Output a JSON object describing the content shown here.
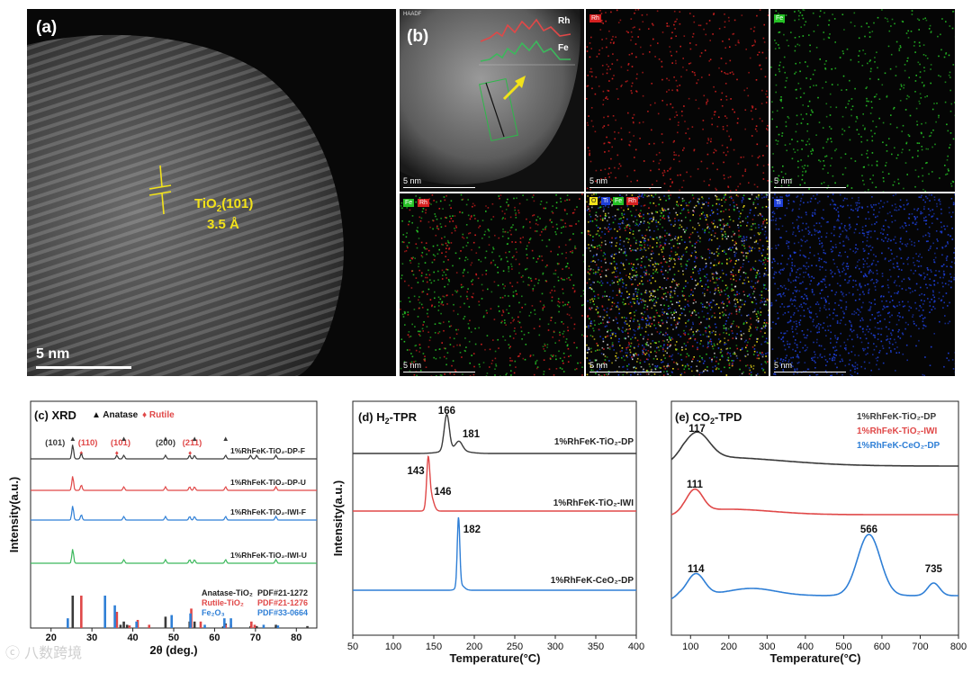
{
  "tem": {
    "panel_a": {
      "label": "(a)",
      "lattice_label": "TiO",
      "lattice_sub": "2",
      "lattice_plane": "(101)",
      "spacing": "3.5 Å",
      "scale": "5 nm"
    },
    "panel_b": {
      "label": "(b)",
      "haadf_tag": "HAADF",
      "profile_rh": "Rh",
      "profile_fe": "Fe",
      "scale": "5 nm"
    },
    "maps": [
      {
        "tags": [
          "Rh"
        ],
        "scale": "5 nm"
      },
      {
        "tags": [
          "Fe"
        ],
        "scale": "5 nm"
      },
      {
        "tags": [
          "Fe",
          "Rh"
        ],
        "scale": "5 nm"
      },
      {
        "tags": [
          "O",
          "Ti",
          "Fe",
          "Rh"
        ],
        "scale": "5 nm"
      },
      {
        "tags": [
          "Ti"
        ],
        "scale": "5 nm"
      }
    ]
  },
  "colors": {
    "black": "#3a3a3a",
    "red": "#e04848",
    "blue": "#2f7fd6",
    "green": "#3cb85c",
    "rh_map": "#d62020",
    "fe_map": "#26c226",
    "ti_map": "#1e3fd8",
    "yellow": "#f2e21a"
  },
  "chart_data": [
    {
      "id": "c",
      "type": "line",
      "panel_label": "(c) XRD",
      "legend_symbols": [
        "▲ Anatase",
        "♦ Rutile"
      ],
      "xlabel": "2θ (deg.)",
      "ylabel": "Intensity(a.u.)",
      "xlim": [
        15,
        85
      ],
      "x_ticks": [
        20,
        30,
        40,
        50,
        60,
        70,
        80
      ],
      "peak_labels": [
        {
          "text": "(101)",
          "x": 21,
          "color": "black"
        },
        {
          "text": "(110)",
          "x": 29,
          "color": "red"
        },
        {
          "text": "(101)",
          "x": 37,
          "color": "red"
        },
        {
          "text": "(200)",
          "x": 48,
          "color": "black"
        },
        {
          "text": "(211)",
          "x": 54.5,
          "color": "red"
        }
      ],
      "series": [
        {
          "name": "1%RhFeK-TiO₂-DP-F",
          "color": "black",
          "peaks": [
            25.3,
            27.4,
            36.1,
            37.8,
            48.0,
            53.9,
            55.1,
            62.7,
            68.8,
            70.3,
            75.0
          ]
        },
        {
          "name": "1%RhFeK-TiO₂-DP-U",
          "color": "red",
          "peaks": [
            25.3,
            27.4,
            37.8,
            48.0,
            53.9,
            55.1,
            62.7,
            75.0
          ]
        },
        {
          "name": "1%RhFeK-TiO₂-IWI-F",
          "color": "blue",
          "peaks": [
            25.3,
            27.4,
            37.8,
            48.0,
            53.9,
            55.1,
            62.7,
            75.0
          ]
        },
        {
          "name": "1%RhFeK-TiO₂-IWI-U",
          "color": "green",
          "peaks": [
            25.3,
            37.8,
            48.0,
            53.9,
            55.1,
            62.7,
            75.0
          ]
        }
      ],
      "references": [
        {
          "name": "Anatase-TiO₂",
          "pdf": "PDF#21-1272",
          "color": "#3a3a3a",
          "lines": [
            [
              25.3,
              1.0
            ],
            [
              37.0,
              0.1
            ],
            [
              37.8,
              0.2
            ],
            [
              38.6,
              0.1
            ],
            [
              48.0,
              0.35
            ],
            [
              53.9,
              0.2
            ],
            [
              55.1,
              0.2
            ],
            [
              62.1,
              0.05
            ],
            [
              62.7,
              0.14
            ],
            [
              68.8,
              0.06
            ],
            [
              70.3,
              0.06
            ],
            [
              75.0,
              0.1
            ],
            [
              82.7,
              0.06
            ]
          ]
        },
        {
          "name": "Rutile-TiO₂",
          "pdf": "PDF#21-1276",
          "color": "#e04848",
          "lines": [
            [
              27.4,
              1.0
            ],
            [
              36.1,
              0.5
            ],
            [
              39.2,
              0.08
            ],
            [
              41.2,
              0.25
            ],
            [
              44.0,
              0.1
            ],
            [
              54.3,
              0.6
            ],
            [
              56.6,
              0.2
            ],
            [
              62.7,
              0.1
            ],
            [
              64.0,
              0.1
            ],
            [
              69.0,
              0.2
            ],
            [
              69.8,
              0.1
            ]
          ]
        },
        {
          "name": "Fe₂O₃",
          "pdf": "PDF#33-0664",
          "color": "#2f7fd6",
          "lines": [
            [
              24.1,
              0.3
            ],
            [
              33.2,
              1.0
            ],
            [
              35.6,
              0.7
            ],
            [
              40.9,
              0.2
            ],
            [
              49.5,
              0.4
            ],
            [
              54.1,
              0.45
            ],
            [
              57.6,
              0.1
            ],
            [
              62.4,
              0.3
            ],
            [
              64.0,
              0.3
            ],
            [
              72.0,
              0.1
            ],
            [
              75.5,
              0.08
            ]
          ]
        }
      ]
    },
    {
      "id": "d",
      "type": "line",
      "panel_label": "(d) H",
      "panel_sub": "2",
      "panel_suffix": "-TPR",
      "xlabel": "Temperature(°C)",
      "ylabel": "Intensity(a.u.)",
      "xlim": [
        50,
        400
      ],
      "x_ticks": [
        50,
        100,
        150,
        200,
        250,
        300,
        350,
        400
      ],
      "series": [
        {
          "name": "1%RhFeK-TiO₂-DP",
          "color": "black",
          "peaks": [
            {
              "x": 166,
              "label": "166"
            },
            {
              "x": 181,
              "label": "181"
            }
          ]
        },
        {
          "name": "1%RhFeK-TiO₂-IWI",
          "color": "red",
          "peaks": [
            {
              "x": 143,
              "label": "143"
            },
            {
              "x": 146,
              "label": "146"
            }
          ]
        },
        {
          "name": "1%RhFeK-CeO₂-DP",
          "color": "blue",
          "peaks": [
            {
              "x": 182,
              "label": "182"
            }
          ]
        }
      ]
    },
    {
      "id": "e",
      "type": "line",
      "panel_label": "(e) CO",
      "panel_sub": "2",
      "panel_suffix": "-TPD",
      "xlabel": "Temperature(°C)",
      "xlim": [
        50,
        800
      ],
      "x_ticks": [
        100,
        200,
        300,
        400,
        500,
        600,
        700,
        800
      ],
      "series": [
        {
          "name": "1%RhFeK-TiO₂-DP",
          "color": "black",
          "peaks": [
            {
              "x": 117,
              "label": "117"
            }
          ]
        },
        {
          "name": "1%RhFeK-TiO₂-IWI",
          "color": "red",
          "peaks": [
            {
              "x": 111,
              "label": "111"
            }
          ]
        },
        {
          "name": "1%RhFeK-CeO₂-DP",
          "color": "blue",
          "peaks": [
            {
              "x": 114,
              "label": "114"
            },
            {
              "x": 566,
              "label": "566"
            },
            {
              "x": 735,
              "label": "735"
            }
          ]
        }
      ]
    }
  ],
  "watermark": "ⓒ 八数跨境"
}
